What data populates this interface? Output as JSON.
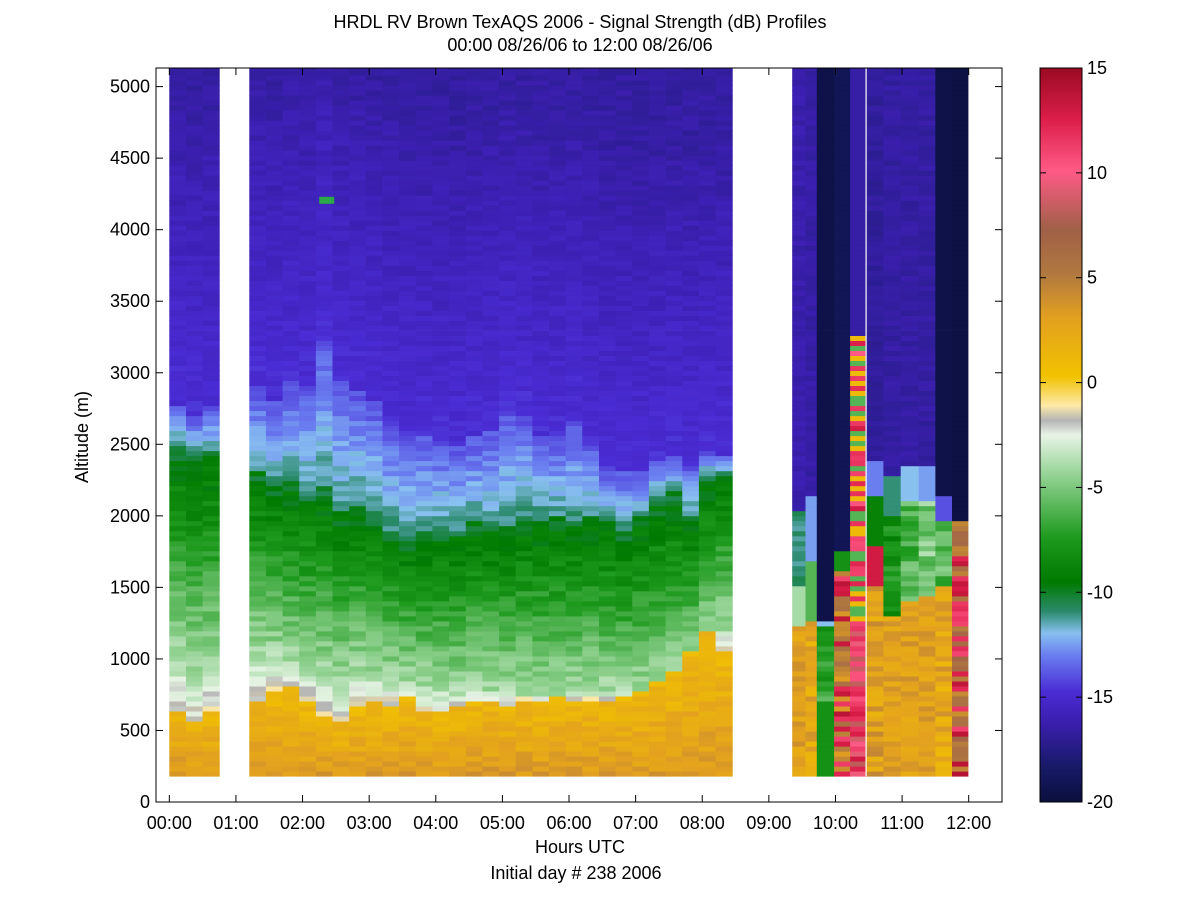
{
  "chart_data": {
    "type": "heatmap",
    "title": "HRDL RV Brown TexAQS 2006 - Signal Strength (dB) Profiles",
    "subtitle": "00:00 08/26/06 to 12:00 08/26/06",
    "xlabel": "Hours UTC",
    "xlabel2": "Initial day # 238  2006",
    "ylabel": "Altitude (m)",
    "xlim": [
      -0.2,
      12.5
    ],
    "ylim": [
      0,
      5130
    ],
    "x_ticks": [
      0,
      1,
      2,
      3,
      4,
      5,
      6,
      7,
      8,
      9,
      10,
      11,
      12
    ],
    "x_tick_labels": [
      "00:00",
      "01:00",
      "02:00",
      "03:00",
      "04:00",
      "05:00",
      "06:00",
      "07:00",
      "08:00",
      "09:00",
      "10:00",
      "11:00",
      "12:00"
    ],
    "y_ticks": [
      0,
      500,
      1000,
      1500,
      2000,
      2500,
      3000,
      3500,
      4000,
      4500,
      5000
    ],
    "y_tick_labels": [
      "0",
      "500",
      "1000",
      "1500",
      "2000",
      "2500",
      "3000",
      "3500",
      "4000",
      "4500",
      "5000"
    ],
    "colorbar": {
      "label_ticks": [
        -20,
        -15,
        -10,
        -5,
        0,
        5,
        10,
        15
      ],
      "label_tick_text": [
        "-20",
        "-15",
        "-10",
        "-5",
        "0",
        "5",
        "10",
        "15"
      ],
      "range": [
        -20,
        15
      ]
    },
    "data_gaps_hours": [
      [
        0.75,
        1.1
      ],
      [
        8.5,
        9.35
      ],
      [
        11.99,
        12.5
      ]
    ],
    "columns": [
      {
        "t": 0.0,
        "top": 2780,
        "green": 2500,
        "white": 1000,
        "yellow": 640
      },
      {
        "t": 0.25,
        "top": 2700,
        "green": 2420,
        "white": 900,
        "yellow": 560
      },
      {
        "t": 0.5,
        "top": 2760,
        "green": 2450,
        "white": 950,
        "yellow": 620
      },
      {
        "t": 1.2,
        "top": 2900,
        "green": 2320,
        "white": 1050,
        "yellow": 720
      },
      {
        "t": 1.45,
        "top": 2800,
        "green": 2220,
        "white": 1020,
        "yellow": 760
      },
      {
        "t": 1.7,
        "top": 2950,
        "green": 2250,
        "white": 980,
        "yellow": 820
      },
      {
        "t": 1.95,
        "top": 2900,
        "green": 2150,
        "white": 950,
        "yellow": 700
      },
      {
        "t": 2.2,
        "top": 3230,
        "green": 2200,
        "white": 900,
        "yellow": 600
      },
      {
        "t": 2.45,
        "top": 2950,
        "green": 2050,
        "white": 870,
        "yellow": 560
      },
      {
        "t": 2.7,
        "top": 2870,
        "green": 2080,
        "white": 900,
        "yellow": 660
      },
      {
        "t": 2.95,
        "top": 2800,
        "green": 2030,
        "white": 870,
        "yellow": 700
      },
      {
        "t": 3.2,
        "top": 2650,
        "green": 1900,
        "white": 860,
        "yellow": 680
      },
      {
        "t": 3.45,
        "top": 2580,
        "green": 1860,
        "white": 850,
        "yellow": 730
      },
      {
        "t": 3.7,
        "top": 2570,
        "green": 1880,
        "white": 810,
        "yellow": 630
      },
      {
        "t": 3.95,
        "top": 2520,
        "green": 1900,
        "white": 800,
        "yellow": 620
      },
      {
        "t": 4.2,
        "top": 2500,
        "green": 1880,
        "white": 780,
        "yellow": 680
      },
      {
        "t": 4.45,
        "top": 2550,
        "green": 1960,
        "white": 800,
        "yellow": 710
      },
      {
        "t": 4.7,
        "top": 2600,
        "green": 1920,
        "white": 790,
        "yellow": 700
      },
      {
        "t": 4.95,
        "top": 2750,
        "green": 1920,
        "white": 770,
        "yellow": 680
      },
      {
        "t": 5.2,
        "top": 2700,
        "green": 1990,
        "white": 760,
        "yellow": 720
      },
      {
        "t": 5.45,
        "top": 2560,
        "green": 1980,
        "white": 760,
        "yellow": 700
      },
      {
        "t": 5.7,
        "top": 2560,
        "green": 1990,
        "white": 750,
        "yellow": 730
      },
      {
        "t": 5.95,
        "top": 2650,
        "green": 1980,
        "white": 760,
        "yellow": 720
      },
      {
        "t": 6.2,
        "top": 2500,
        "green": 1990,
        "white": 780,
        "yellow": 720
      },
      {
        "t": 6.45,
        "top": 2340,
        "green": 1960,
        "white": 780,
        "yellow": 700
      },
      {
        "t": 6.7,
        "top": 2320,
        "green": 1900,
        "white": 760,
        "yellow": 740
      },
      {
        "t": 6.95,
        "top": 2300,
        "green": 2000,
        "white": 750,
        "yellow": 770
      },
      {
        "t": 7.2,
        "top": 2370,
        "green": 2120,
        "white": 800,
        "yellow": 850
      },
      {
        "t": 7.45,
        "top": 2430,
        "green": 2160,
        "white": 850,
        "yellow": 900
      },
      {
        "t": 7.7,
        "top": 2350,
        "green": 2000,
        "white": 1000,
        "yellow": 1050
      },
      {
        "t": 7.95,
        "top": 2450,
        "green": 2280,
        "white": 1150,
        "yellow": 1180
      },
      {
        "t": 8.2,
        "top": 2430,
        "green": 2300,
        "white": 1200,
        "yellow": 1070
      }
    ]
  }
}
